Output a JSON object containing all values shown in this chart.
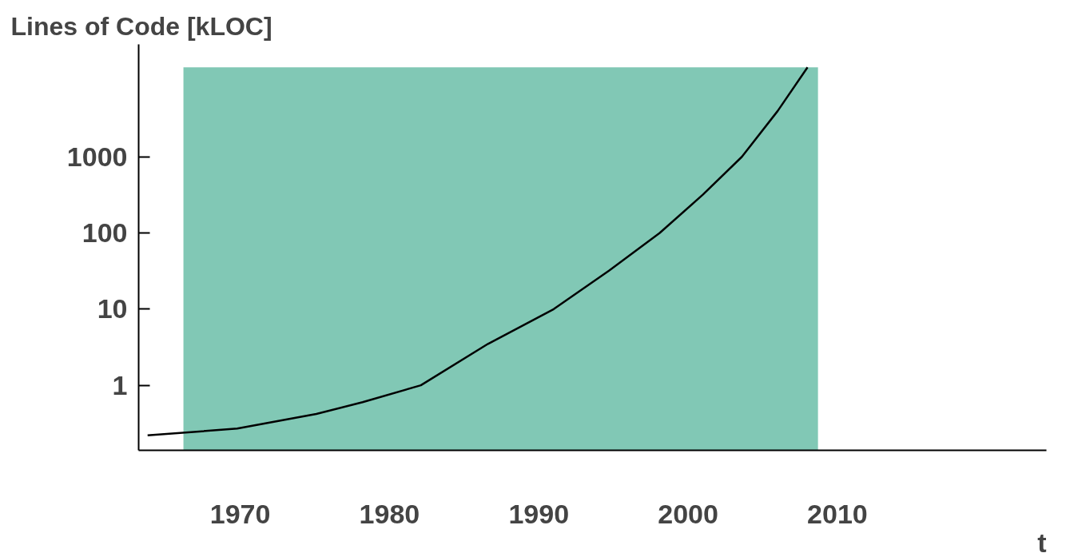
{
  "chart_data": {
    "type": "line",
    "xlabel": "t",
    "ylabel": "Lines of Code [kLOC]",
    "x": [
      1963.8,
      1969.8,
      1975.1,
      1978.2,
      1982.1,
      1986.6,
      1991.0,
      1994.7,
      1998.1,
      2001.0,
      2003.6,
      2006.0,
      2008.0
    ],
    "series": [
      {
        "color": "#000000",
        "values": [
          0.22,
          0.27,
          0.42,
          0.6,
          1,
          3.5,
          10,
          32,
          100,
          320,
          1000,
          4000,
          15000
        ]
      }
    ],
    "log": "y",
    "xlim": [
      1963.2,
      2024
    ],
    "ylim": [
      0.14,
      30000
    ],
    "xticks": [
      1970,
      1980,
      1990,
      2000,
      2010
    ],
    "yticks": [
      1,
      10,
      100,
      1000
    ],
    "bands": [
      {
        "axis": "x",
        "from": 1966.2,
        "to": 2008.7,
        "color": "#1a9a78"
      }
    ],
    "grid": false,
    "marker": "none",
    "line_style": "solid"
  }
}
